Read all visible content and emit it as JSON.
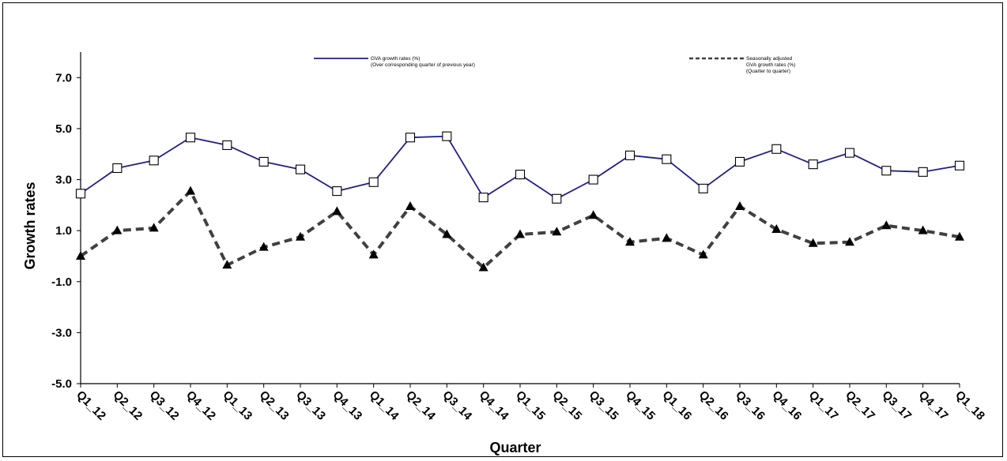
{
  "chart_data": {
    "type": "line",
    "title": "",
    "xlabel": "Quarter",
    "ylabel": "Growth rates",
    "ylim": [
      -5.0,
      8.0
    ],
    "yticks": [
      "-5.0",
      "-3.0",
      "-1.0",
      "1.0",
      "3.0",
      "5.0",
      "7.0"
    ],
    "ytick_values": [
      -5,
      -3,
      -1,
      1,
      3,
      5,
      7
    ],
    "categories": [
      "Q1_12",
      "Q2_12",
      "Q3_12",
      "Q4_12",
      "Q1_13",
      "Q2_13",
      "Q3_13",
      "Q4_13",
      "Q1_14",
      "Q2_14",
      "Q3_14",
      "Q4_14",
      "Q1_15",
      "Q2_15",
      "Q3_15",
      "Q4_15",
      "Q1_16",
      "Q2_16",
      "Q3_16",
      "Q4_16",
      "Q1_17",
      "Q2_17",
      "Q3_17",
      "Q4_17",
      "Q1_18"
    ],
    "grid": false,
    "legend_position": "top",
    "series": [
      {
        "name": "GVA growth rates (%)",
        "name_line2": "(Over corresponding quarter of previous year)",
        "style": "solid",
        "marker": "open-square",
        "color": "#1f1f8c",
        "values": [
          2.45,
          3.45,
          3.75,
          4.65,
          4.35,
          3.7,
          3.4,
          2.55,
          2.9,
          4.65,
          4.7,
          2.3,
          3.2,
          2.25,
          3.0,
          3.95,
          3.8,
          2.65,
          3.7,
          4.2,
          3.6,
          4.05,
          3.35,
          3.3,
          3.55
        ]
      },
      {
        "name": "Seasonally adjusted",
        "name_line2": "GVA growth rates (%)",
        "name_line3": "(Quarter to quarter)",
        "style": "dashed",
        "marker": "filled-triangle",
        "color": "#404040",
        "values": [
          0.0,
          1.0,
          1.1,
          2.55,
          -0.35,
          0.35,
          0.75,
          1.75,
          0.05,
          1.95,
          0.85,
          -0.45,
          0.85,
          0.95,
          1.6,
          0.55,
          0.7,
          0.05,
          1.95,
          1.05,
          0.5,
          0.55,
          1.2,
          1.0,
          0.75
        ]
      }
    ]
  }
}
